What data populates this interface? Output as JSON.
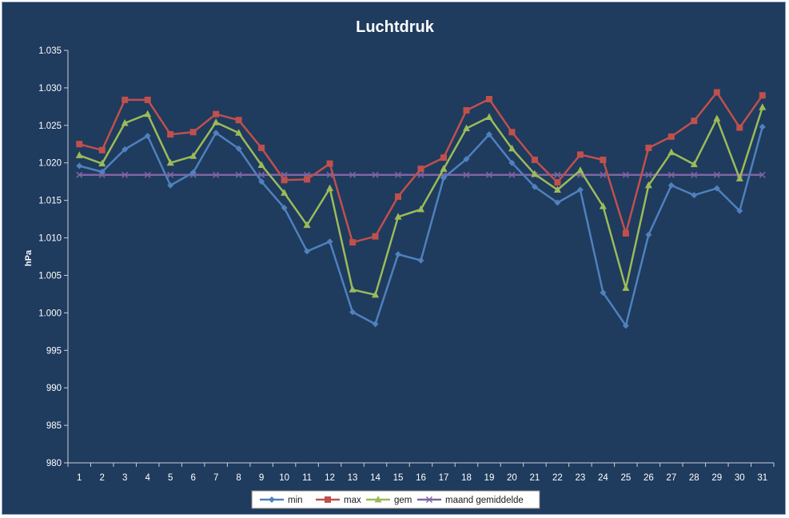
{
  "chart_data": {
    "type": "line",
    "title": "Luchtdruk",
    "xlabel": "",
    "ylabel": "hPa",
    "categories": [
      "1",
      "2",
      "3",
      "4",
      "5",
      "6",
      "7",
      "8",
      "9",
      "10",
      "11",
      "12",
      "13",
      "14",
      "15",
      "16",
      "17",
      "18",
      "19",
      "20",
      "21",
      "22",
      "23",
      "24",
      "25",
      "26",
      "27",
      "28",
      "29",
      "30",
      "31"
    ],
    "yticks": [
      "980",
      "985",
      "990",
      "995",
      "1.000",
      "1.005",
      "1.010",
      "1.015",
      "1.020",
      "1.025",
      "1.030",
      "1.035"
    ],
    "ylim": [
      980,
      1035
    ],
    "grid": false,
    "legend_position": "bottom",
    "series": [
      {
        "name": "min",
        "color": "#4f81bd",
        "marker": "diamond",
        "values": [
          1019.6,
          1018.8,
          1021.8,
          1023.6,
          1017.0,
          1018.7,
          1024.0,
          1021.9,
          1017.5,
          1014.0,
          1008.2,
          1009.5,
          1000.1,
          998.5,
          1007.8,
          1007.0,
          1018.0,
          1020.5,
          1023.8,
          1020.0,
          1016.8,
          1014.7,
          1016.4,
          1002.7,
          998.3,
          1010.4,
          1017.0,
          1015.7,
          1016.6,
          1013.6,
          1024.8
        ]
      },
      {
        "name": "max",
        "color": "#c0504d",
        "marker": "square",
        "values": [
          1022.5,
          1021.7,
          1028.4,
          1028.4,
          1023.8,
          1024.1,
          1026.5,
          1025.7,
          1022.0,
          1017.7,
          1017.8,
          1019.9,
          1009.4,
          1010.2,
          1015.5,
          1019.2,
          1020.7,
          1027.0,
          1028.5,
          1024.1,
          1020.4,
          1017.4,
          1021.1,
          1020.4,
          1010.6,
          1022.0,
          1023.5,
          1025.6,
          1029.4,
          1024.7,
          1029.0
        ]
      },
      {
        "name": "gem",
        "color": "#9bbb59",
        "marker": "triangle",
        "values": [
          1021.0,
          1019.9,
          1025.3,
          1026.5,
          1020.0,
          1020.9,
          1025.4,
          1024.0,
          1019.7,
          1016.0,
          1011.7,
          1016.6,
          1003.1,
          1002.4,
          1012.8,
          1013.8,
          1019.2,
          1024.6,
          1026.1,
          1021.9,
          1018.5,
          1016.4,
          1019.0,
          1014.2,
          1003.3,
          1017.0,
          1021.4,
          1019.8,
          1025.9,
          1017.9,
          1027.4
        ]
      },
      {
        "name": "maand gemiddelde",
        "color": "#8064a2",
        "marker": "x",
        "values": [
          1018.4,
          1018.4,
          1018.4,
          1018.4,
          1018.4,
          1018.4,
          1018.4,
          1018.4,
          1018.4,
          1018.4,
          1018.4,
          1018.4,
          1018.4,
          1018.4,
          1018.4,
          1018.4,
          1018.4,
          1018.4,
          1018.4,
          1018.4,
          1018.4,
          1018.4,
          1018.4,
          1018.4,
          1018.4,
          1018.4,
          1018.4,
          1018.4,
          1018.4,
          1018.4,
          1018.4
        ]
      }
    ]
  }
}
